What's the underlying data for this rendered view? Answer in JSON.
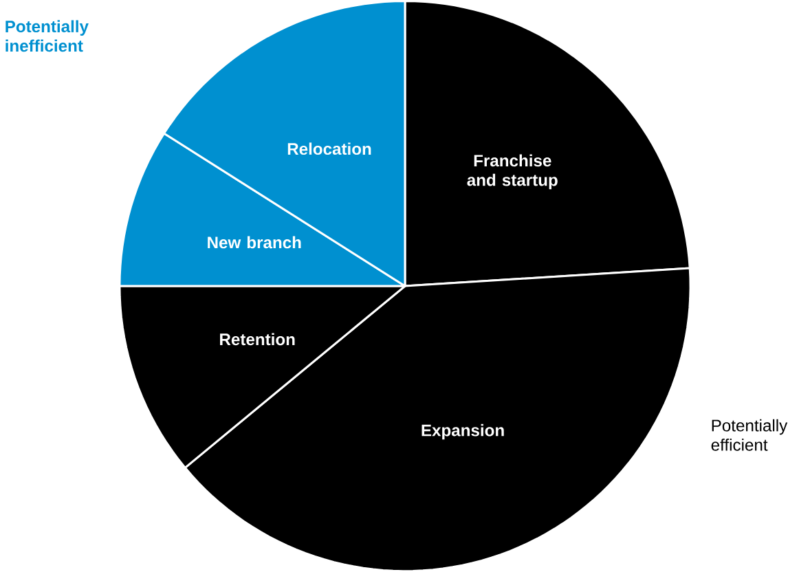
{
  "chart_data": {
    "type": "pie",
    "categories": [
      "Franchise and startup",
      "Expansion",
      "Retention",
      "New branch",
      "Relocation"
    ],
    "values": [
      24,
      40,
      11,
      9,
      16
    ],
    "colors": [
      "#000000",
      "#000000",
      "#000000",
      "#0090d0",
      "#0090d0"
    ],
    "annotations": [
      "Potentially inefficient",
      "Potentially efficient"
    ]
  }
}
